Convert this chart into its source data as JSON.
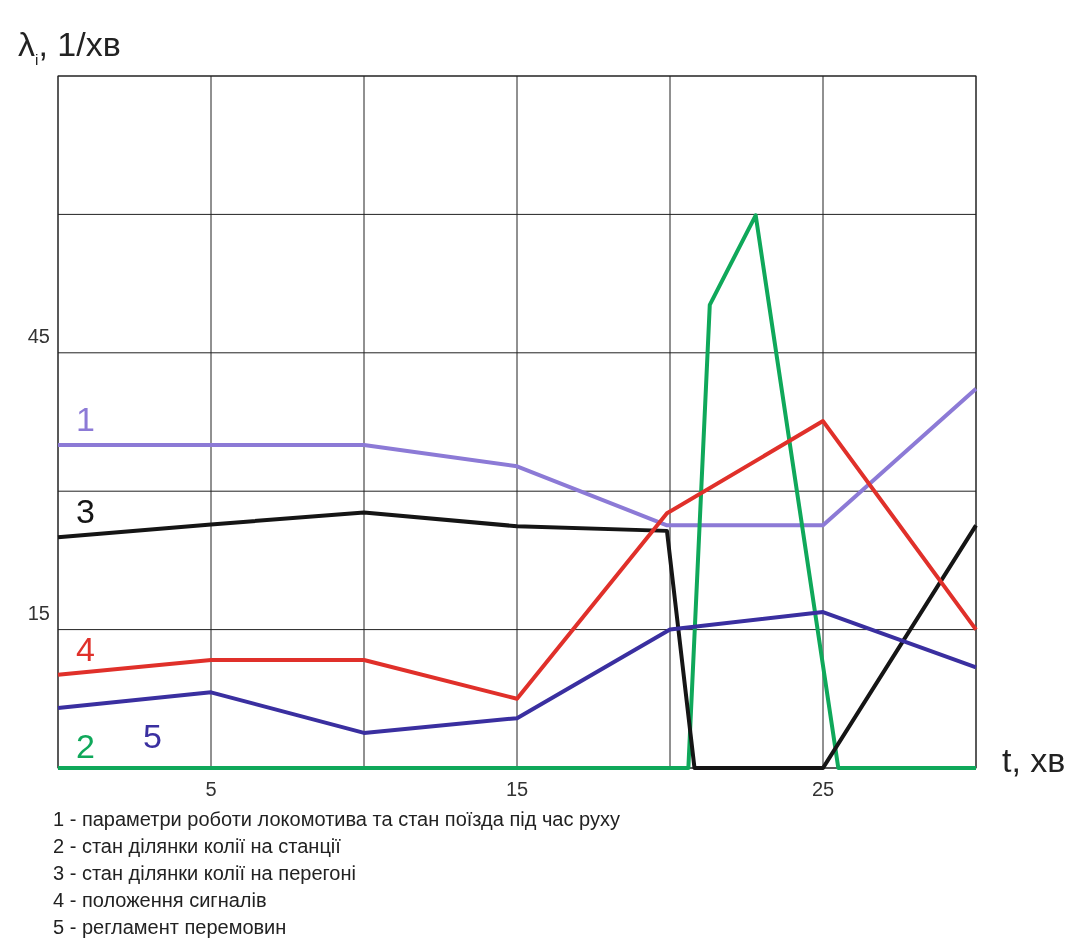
{
  "chart_data": {
    "type": "line",
    "ylabel": "λ$_{i}$, 1/хв",
    "xlabel": "t, хв",
    "xlim": [
      0,
      30
    ],
    "ylim": [
      0,
      75
    ],
    "xticks": [
      {
        "value": 0,
        "label": null
      },
      {
        "value": 5,
        "label": "5"
      },
      {
        "value": 10,
        "label": null
      },
      {
        "value": 15,
        "label": "15"
      },
      {
        "value": 20,
        "label": null
      },
      {
        "value": 25,
        "label": "25"
      },
      {
        "value": 30,
        "label": null
      }
    ],
    "yticks": [
      {
        "value": 0,
        "label": null
      },
      {
        "value": 15,
        "label": "15"
      },
      {
        "value": 30,
        "label": null
      },
      {
        "value": 45,
        "label": "45"
      },
      {
        "value": 60,
        "label": null
      },
      {
        "value": 75,
        "label": null
      }
    ],
    "grid": true,
    "marker": "none",
    "line_style": "solid",
    "series": [
      {
        "name": "1",
        "color": "#8c7ad6",
        "x": [
          0,
          10,
          15,
          19.9,
          25,
          30
        ],
        "values": [
          35,
          35,
          32.7,
          26.3,
          26.3,
          41.1
        ]
      },
      {
        "name": "2",
        "color": "#0fa85a",
        "x": [
          0,
          20.6,
          21.3,
          22.8,
          25.5,
          30
        ],
        "values": [
          0,
          0,
          50.2,
          59.9,
          0,
          0
        ]
      },
      {
        "name": "3",
        "color": "#151515",
        "x": [
          0,
          5,
          10,
          15,
          19.9,
          20.8,
          25,
          30
        ],
        "values": [
          25,
          26.4,
          27.7,
          26.2,
          25.7,
          0,
          0,
          26.3
        ]
      },
      {
        "name": "4",
        "color": "#e0302a",
        "x": [
          0,
          5,
          10,
          15,
          19.9,
          25,
          30
        ],
        "values": [
          10.1,
          11.7,
          11.7,
          7.5,
          27.6,
          37.6,
          15
        ]
      },
      {
        "name": "5",
        "color": "#3a2fa0",
        "x": [
          0,
          5,
          10,
          15,
          20,
          25,
          30
        ],
        "values": [
          6.5,
          8.2,
          3.8,
          5.4,
          15,
          16.9,
          10.9
        ]
      }
    ],
    "annotations": [
      "1 - параметри роботи локомотива та стан поїзда під час руху",
      "2 - стан ділянки колії на станції",
      "3 - стан ділянки колії на перегоні",
      "4 - положення сигналів",
      "5 - регламент перемовин"
    ]
  }
}
